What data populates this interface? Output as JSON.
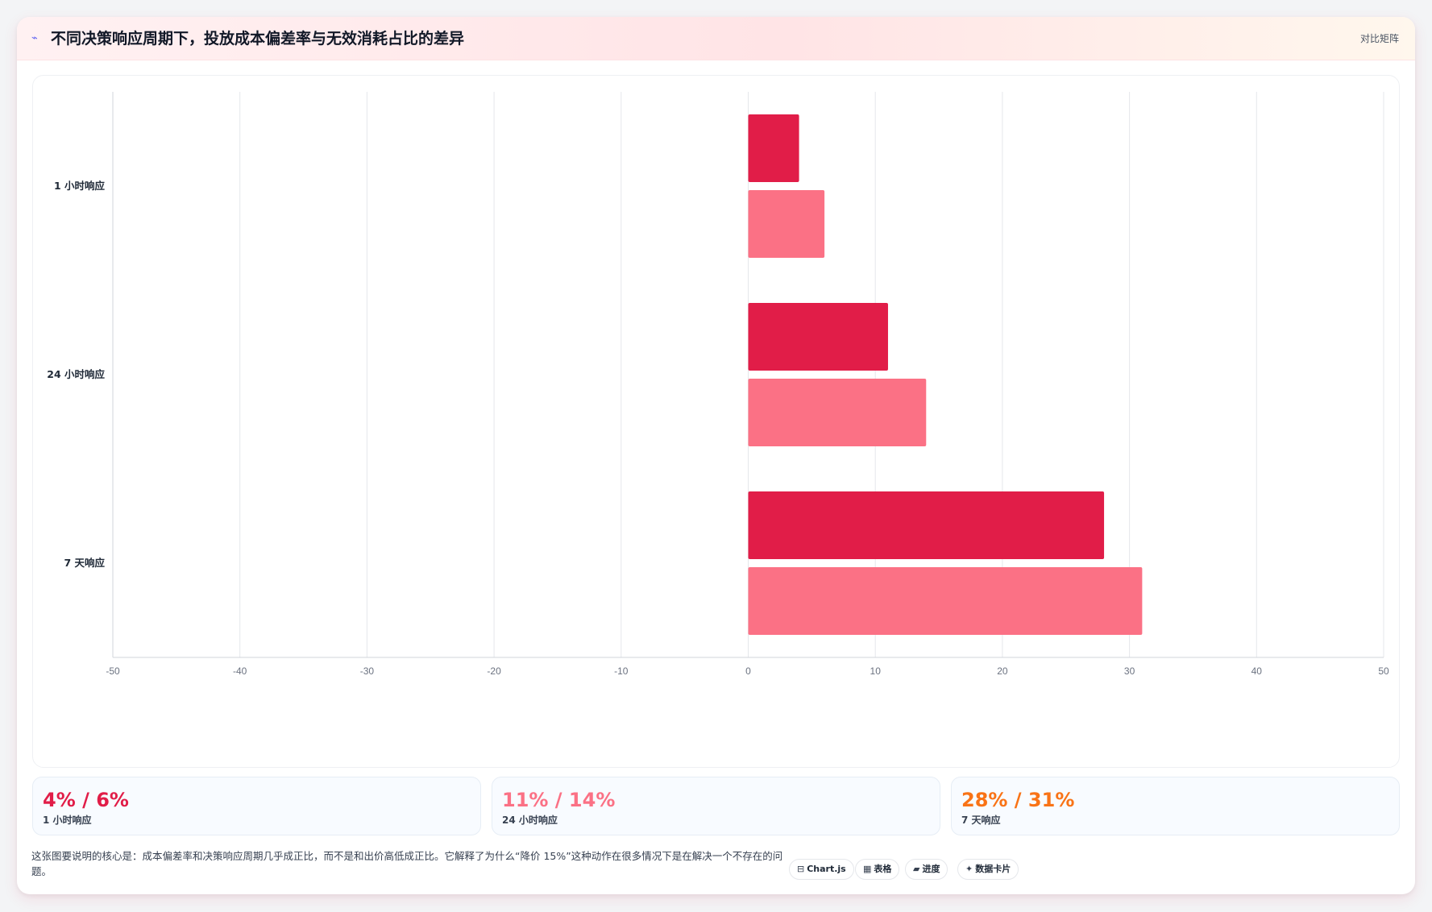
{
  "header": {
    "icon": "sparkline-icon",
    "title": "不同决策响应周期下，投放成本偏差率与无效消耗占比的差异",
    "tag": "对比矩阵"
  },
  "chart_data": {
    "type": "bar",
    "orientation": "horizontal",
    "categories": [
      "1 小时响应",
      "24 小时响应",
      "7 天响应"
    ],
    "series": [
      {
        "values": [
          4,
          11,
          28
        ],
        "color": "#e11d48"
      },
      {
        "values": [
          6,
          14,
          31
        ],
        "color": "#fb7185"
      }
    ],
    "xlim": [
      -50,
      50
    ],
    "xticks": [
      -50,
      -40,
      -30,
      -20,
      -10,
      0,
      10,
      20,
      30,
      40,
      50
    ],
    "grid": true
  },
  "stats": [
    {
      "value": "4% / 6%",
      "label": "1 小时响应",
      "color": "#e11d48"
    },
    {
      "value": "11% / 14%",
      "label": "24 小时响应",
      "color": "#fb7185"
    },
    {
      "value": "28% / 31%",
      "label": "7 天响应",
      "color": "#f97316"
    }
  ],
  "note": "这张图要说明的核心是：成本偏差率和决策响应周期几乎成正比，而不是和出价高低成正比。它解释了为什么“降价 15%”这种动作在很多情况下是在解决一个不存在的问题。",
  "chips": [
    {
      "icon": "⊟",
      "icon_name": "chart-icon",
      "label": "Chart.js"
    },
    {
      "icon": "▦",
      "icon_name": "table-icon",
      "label": "表格"
    },
    {
      "icon": "▰",
      "icon_name": "progress-icon",
      "label": "进度"
    },
    {
      "icon": "✦",
      "icon_name": "sparkle-icon",
      "label": "数据卡片"
    }
  ]
}
